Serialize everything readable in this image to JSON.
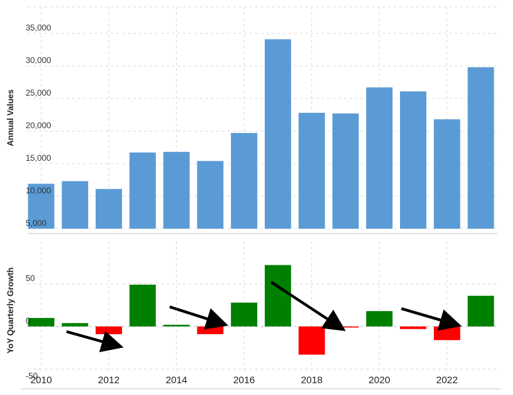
{
  "chart_data": [
    {
      "type": "bar",
      "ylabel": "Annual Values",
      "ylim": [
        5000,
        38000
      ],
      "yticks": [
        "5,000",
        "10,000",
        "15,000",
        "20,000",
        "25,000",
        "30,000",
        "35,000"
      ],
      "ytick_values": [
        5000,
        10000,
        15000,
        20000,
        25000,
        30000,
        35000
      ],
      "grid": true,
      "x": [
        2010,
        2011,
        2012,
        2013,
        2014,
        2015,
        2016,
        2017,
        2018,
        2019,
        2020,
        2021,
        2022,
        2023
      ],
      "values": [
        11900,
        12300,
        11100,
        16700,
        16800,
        15400,
        19700,
        34100,
        22800,
        22700,
        26700,
        26100,
        21800,
        29800
      ],
      "color": "#5b9bd5"
    },
    {
      "type": "bar",
      "ylabel": "YoY Quarterly Growth",
      "ylim": [
        -60,
        100
      ],
      "yticks": [
        "-50",
        "0",
        "50"
      ],
      "ytick_values": [
        -50,
        0,
        50
      ],
      "grid": true,
      "x": [
        2010,
        2011,
        2012,
        2013,
        2014,
        2015,
        2016,
        2017,
        2018,
        2019,
        2020,
        2021,
        2022,
        2023
      ],
      "values": [
        10,
        4,
        -9,
        49,
        2,
        -9,
        28,
        72,
        -33,
        -1,
        18,
        -3,
        -16,
        36
      ],
      "positive_color": "#008000",
      "negative_color": "#ff0000",
      "xtick_labels": [
        "2010",
        "2012",
        "2014",
        "2016",
        "2018",
        "2020",
        "2022"
      ],
      "xtick_values": [
        2010,
        2012,
        2014,
        2016,
        2018,
        2020,
        2022
      ],
      "annotations": [
        {
          "type": "arrow",
          "from": [
            2010.75,
            -6
          ],
          "to": [
            2012.2,
            -22
          ]
        },
        {
          "type": "arrow",
          "from": [
            2013.8,
            23
          ],
          "to": [
            2015.3,
            4
          ]
        },
        {
          "type": "arrow",
          "from": [
            2016.8,
            52
          ],
          "to": [
            2018.8,
            0
          ]
        },
        {
          "type": "arrow",
          "from": [
            2020.65,
            21
          ],
          "to": [
            2022.2,
            3
          ]
        }
      ],
      "arrow_color": "#000000"
    }
  ]
}
